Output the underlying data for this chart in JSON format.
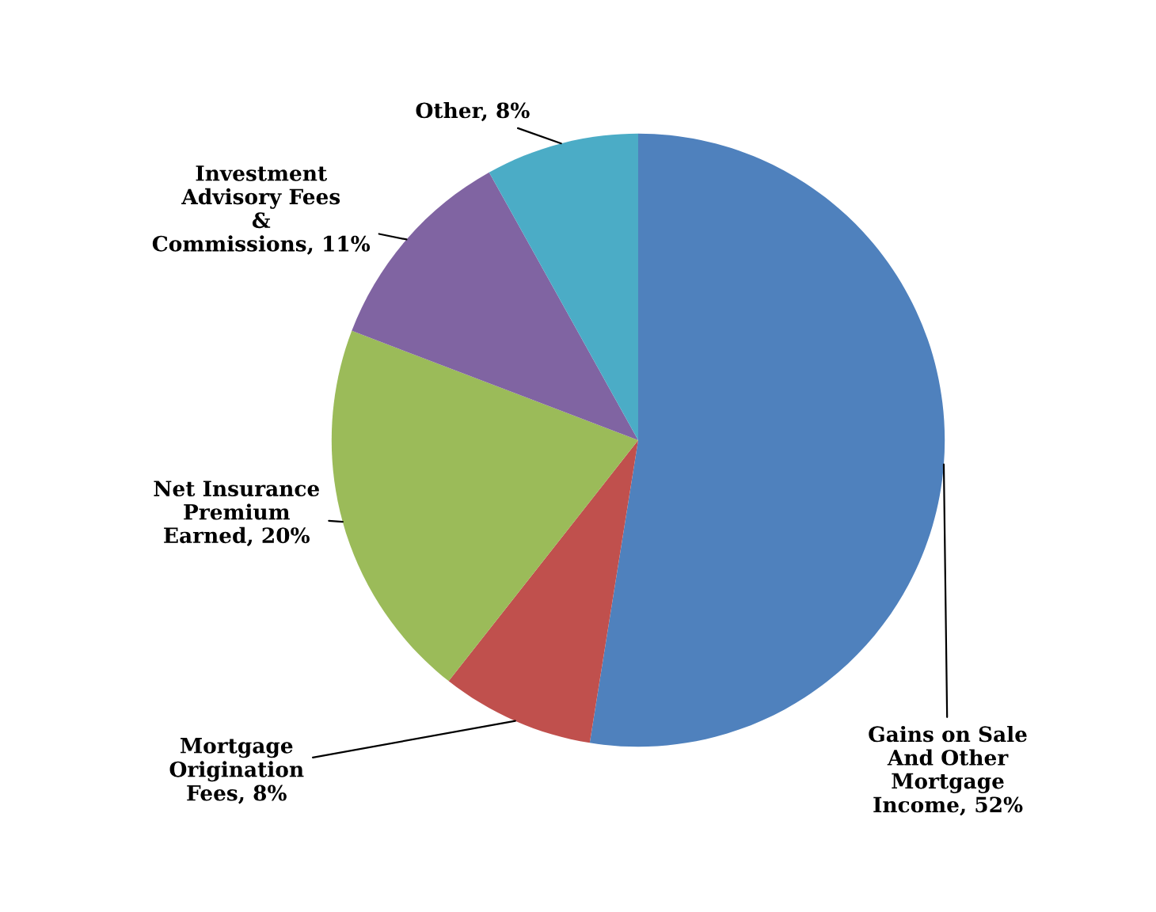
{
  "chart_data": {
    "type": "pie",
    "categories": [
      "Gains on Sale\nAnd Other\nMortgage\nIncome",
      "Mortgage\nOrigination\nFees",
      "Net Insurance\nPremium\nEarned",
      "Investment\nAdvisory Fees\n&\nCommissions",
      "Other"
    ],
    "values": [
      52,
      8,
      20,
      11,
      8
    ],
    "value_labels": [
      "52%",
      "8%",
      "20%",
      "11%",
      "8%"
    ],
    "colors": [
      "#4f81bd",
      "#c0504d",
      "#9bbb59",
      "#8064a2",
      "#4bacc6"
    ],
    "legend": false
  }
}
